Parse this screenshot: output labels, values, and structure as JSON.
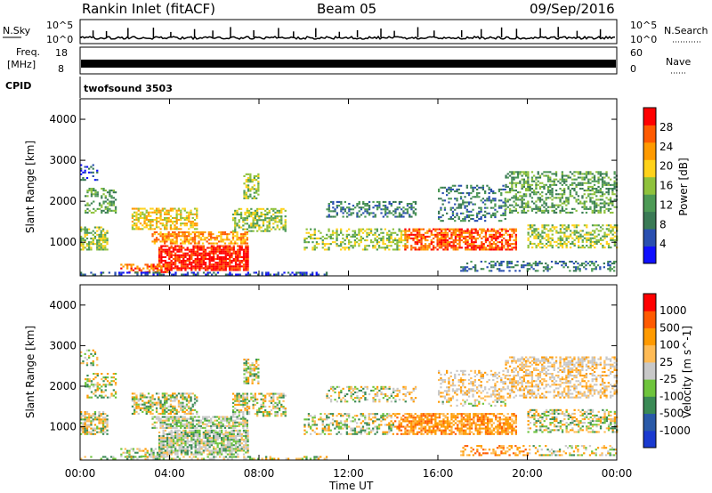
{
  "header": {
    "title": "Rankin Inlet (fitACF)",
    "beam": "Beam 05",
    "date": "09/Sep/2016"
  },
  "panels": {
    "nsky_label": "N.Sky",
    "nsky_ticks": [
      "10^5",
      "10^0"
    ],
    "nsearch_label": "N.Search",
    "nsearch_ticks": [
      "10^5",
      "10^0"
    ],
    "freq_label_1": "Freq.",
    "freq_label_2": "[MHz]",
    "freq_ticks": [
      "18",
      "8"
    ],
    "nave_label": "Nave",
    "nave_ticks": [
      "60",
      "0"
    ],
    "cpid_label": "CPID",
    "cpid_value": "twofsound 3503"
  },
  "colors": {
    "power_scale": [
      "#1010ff",
      "#2a4fb0",
      "#3a7a55",
      "#4d9a55",
      "#8fc23c",
      "#ffd21a",
      "#ff9a00",
      "#ff5a00",
      "#ff0000"
    ],
    "velocity_scale": [
      "#ff0000",
      "#ff5a00",
      "#ff9a00",
      "#ffbb55",
      "#c8c8c8",
      "#6ec43c",
      "#3a8a55",
      "#2a5aa8",
      "#1a3ad0"
    ]
  },
  "chart_data": [
    {
      "type": "heatmap",
      "ylabel": "Slant Range [km]",
      "xlabel": "Time UT",
      "x_ticks": [
        "00:00",
        "04:00",
        "08:00",
        "12:00",
        "16:00",
        "20:00",
        "00:00"
      ],
      "y_ticks": [
        "1000",
        "2000",
        "3000",
        "4000"
      ],
      "xlim": [
        0,
        24
      ],
      "ylim": [
        180,
        4500
      ],
      "colorbar": {
        "label": "Power [dB]",
        "ticks": [
          "28",
          "24",
          "20",
          "16",
          "12",
          "8",
          "4"
        ]
      }
    },
    {
      "type": "heatmap",
      "ylabel": "Slant Range [km]",
      "xlabel": "Time UT",
      "x_ticks": [
        "00:00",
        "04:00",
        "08:00",
        "12:00",
        "16:00",
        "20:00",
        "00:00"
      ],
      "y_ticks": [
        "1000",
        "2000",
        "3000",
        "4000"
      ],
      "xlim": [
        0,
        24
      ],
      "ylim": [
        180,
        4500
      ],
      "colorbar": {
        "label": "Velocity [m s^-1]",
        "ticks": [
          "1000",
          "500",
          "100",
          "25",
          "-25",
          "-100",
          "-500",
          "-1000"
        ]
      }
    }
  ]
}
